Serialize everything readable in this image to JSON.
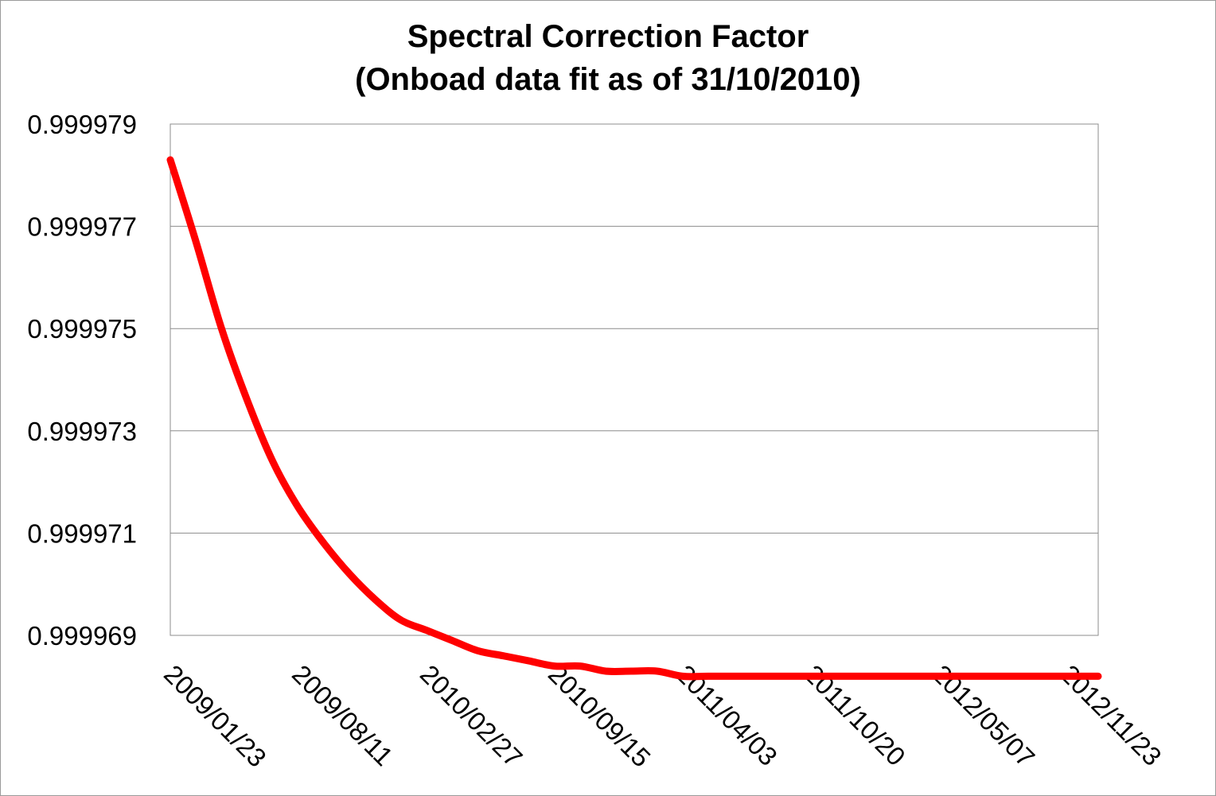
{
  "chart_data": {
    "type": "line",
    "title": "Spectral Correction Factor",
    "subtitle": "(Onboad data fit as of 31/10/2010)",
    "xlabel": "",
    "ylabel": "",
    "ylim": [
      0.999969,
      0.999979
    ],
    "y_ticks": [
      "0.999979",
      "0.999977",
      "0.999975",
      "0.999973",
      "0.999971",
      "0.999969"
    ],
    "x_ticks": [
      "2009/01/23",
      "2009/08/11",
      "2010/02/27",
      "2010/09/15",
      "2011/04/03",
      "2011/10/20",
      "2012/05/07",
      "2012/11/23"
    ],
    "xlim": [
      "2009/01/23",
      "2013/01/11"
    ],
    "grid": true,
    "legend": "none",
    "series": [
      {
        "color": "#ff0000",
        "x": [
          "2009/01/23",
          "2009/03/04",
          "2009/04/13",
          "2009/05/23",
          "2009/07/02",
          "2009/08/11",
          "2009/09/20",
          "2009/10/30",
          "2009/12/09",
          "2010/01/18",
          "2010/02/27",
          "2010/04/08",
          "2010/05/18",
          "2010/06/27",
          "2010/08/06",
          "2010/09/15",
          "2010/10/25",
          "2010/12/04",
          "2011/01/13",
          "2011/02/22",
          "2011/04/03",
          "2011/05/13",
          "2011/06/22",
          "2011/08/01",
          "2011/09/10",
          "2011/10/20",
          "2011/11/29",
          "2012/01/08",
          "2012/02/17",
          "2012/03/28",
          "2012/05/07",
          "2012/06/16",
          "2012/07/26",
          "2012/09/04",
          "2012/10/14",
          "2012/11/23",
          "2013/01/11"
        ],
        "values": [
          0.9999783,
          0.9999767,
          0.999975,
          0.9999736,
          0.9999724,
          0.9999715,
          0.9999708,
          0.9999702,
          0.9999697,
          0.9999693,
          0.9999691,
          0.9999689,
          0.9999687,
          0.9999686,
          0.9999685,
          0.9999684,
          0.9999684,
          0.9999683,
          0.9999683,
          0.9999683,
          0.9999682,
          0.9999682,
          0.9999682,
          0.9999682,
          0.9999682,
          0.9999682,
          0.9999682,
          0.9999682,
          0.9999682,
          0.9999682,
          0.9999682,
          0.9999682,
          0.9999682,
          0.9999682,
          0.9999682,
          0.9999682,
          0.9999682
        ]
      }
    ]
  },
  "colors": {
    "line": "#ff0000",
    "grid": "#8c8c8c",
    "axis": "#8c8c8c",
    "frame": "#9a9a9a"
  }
}
